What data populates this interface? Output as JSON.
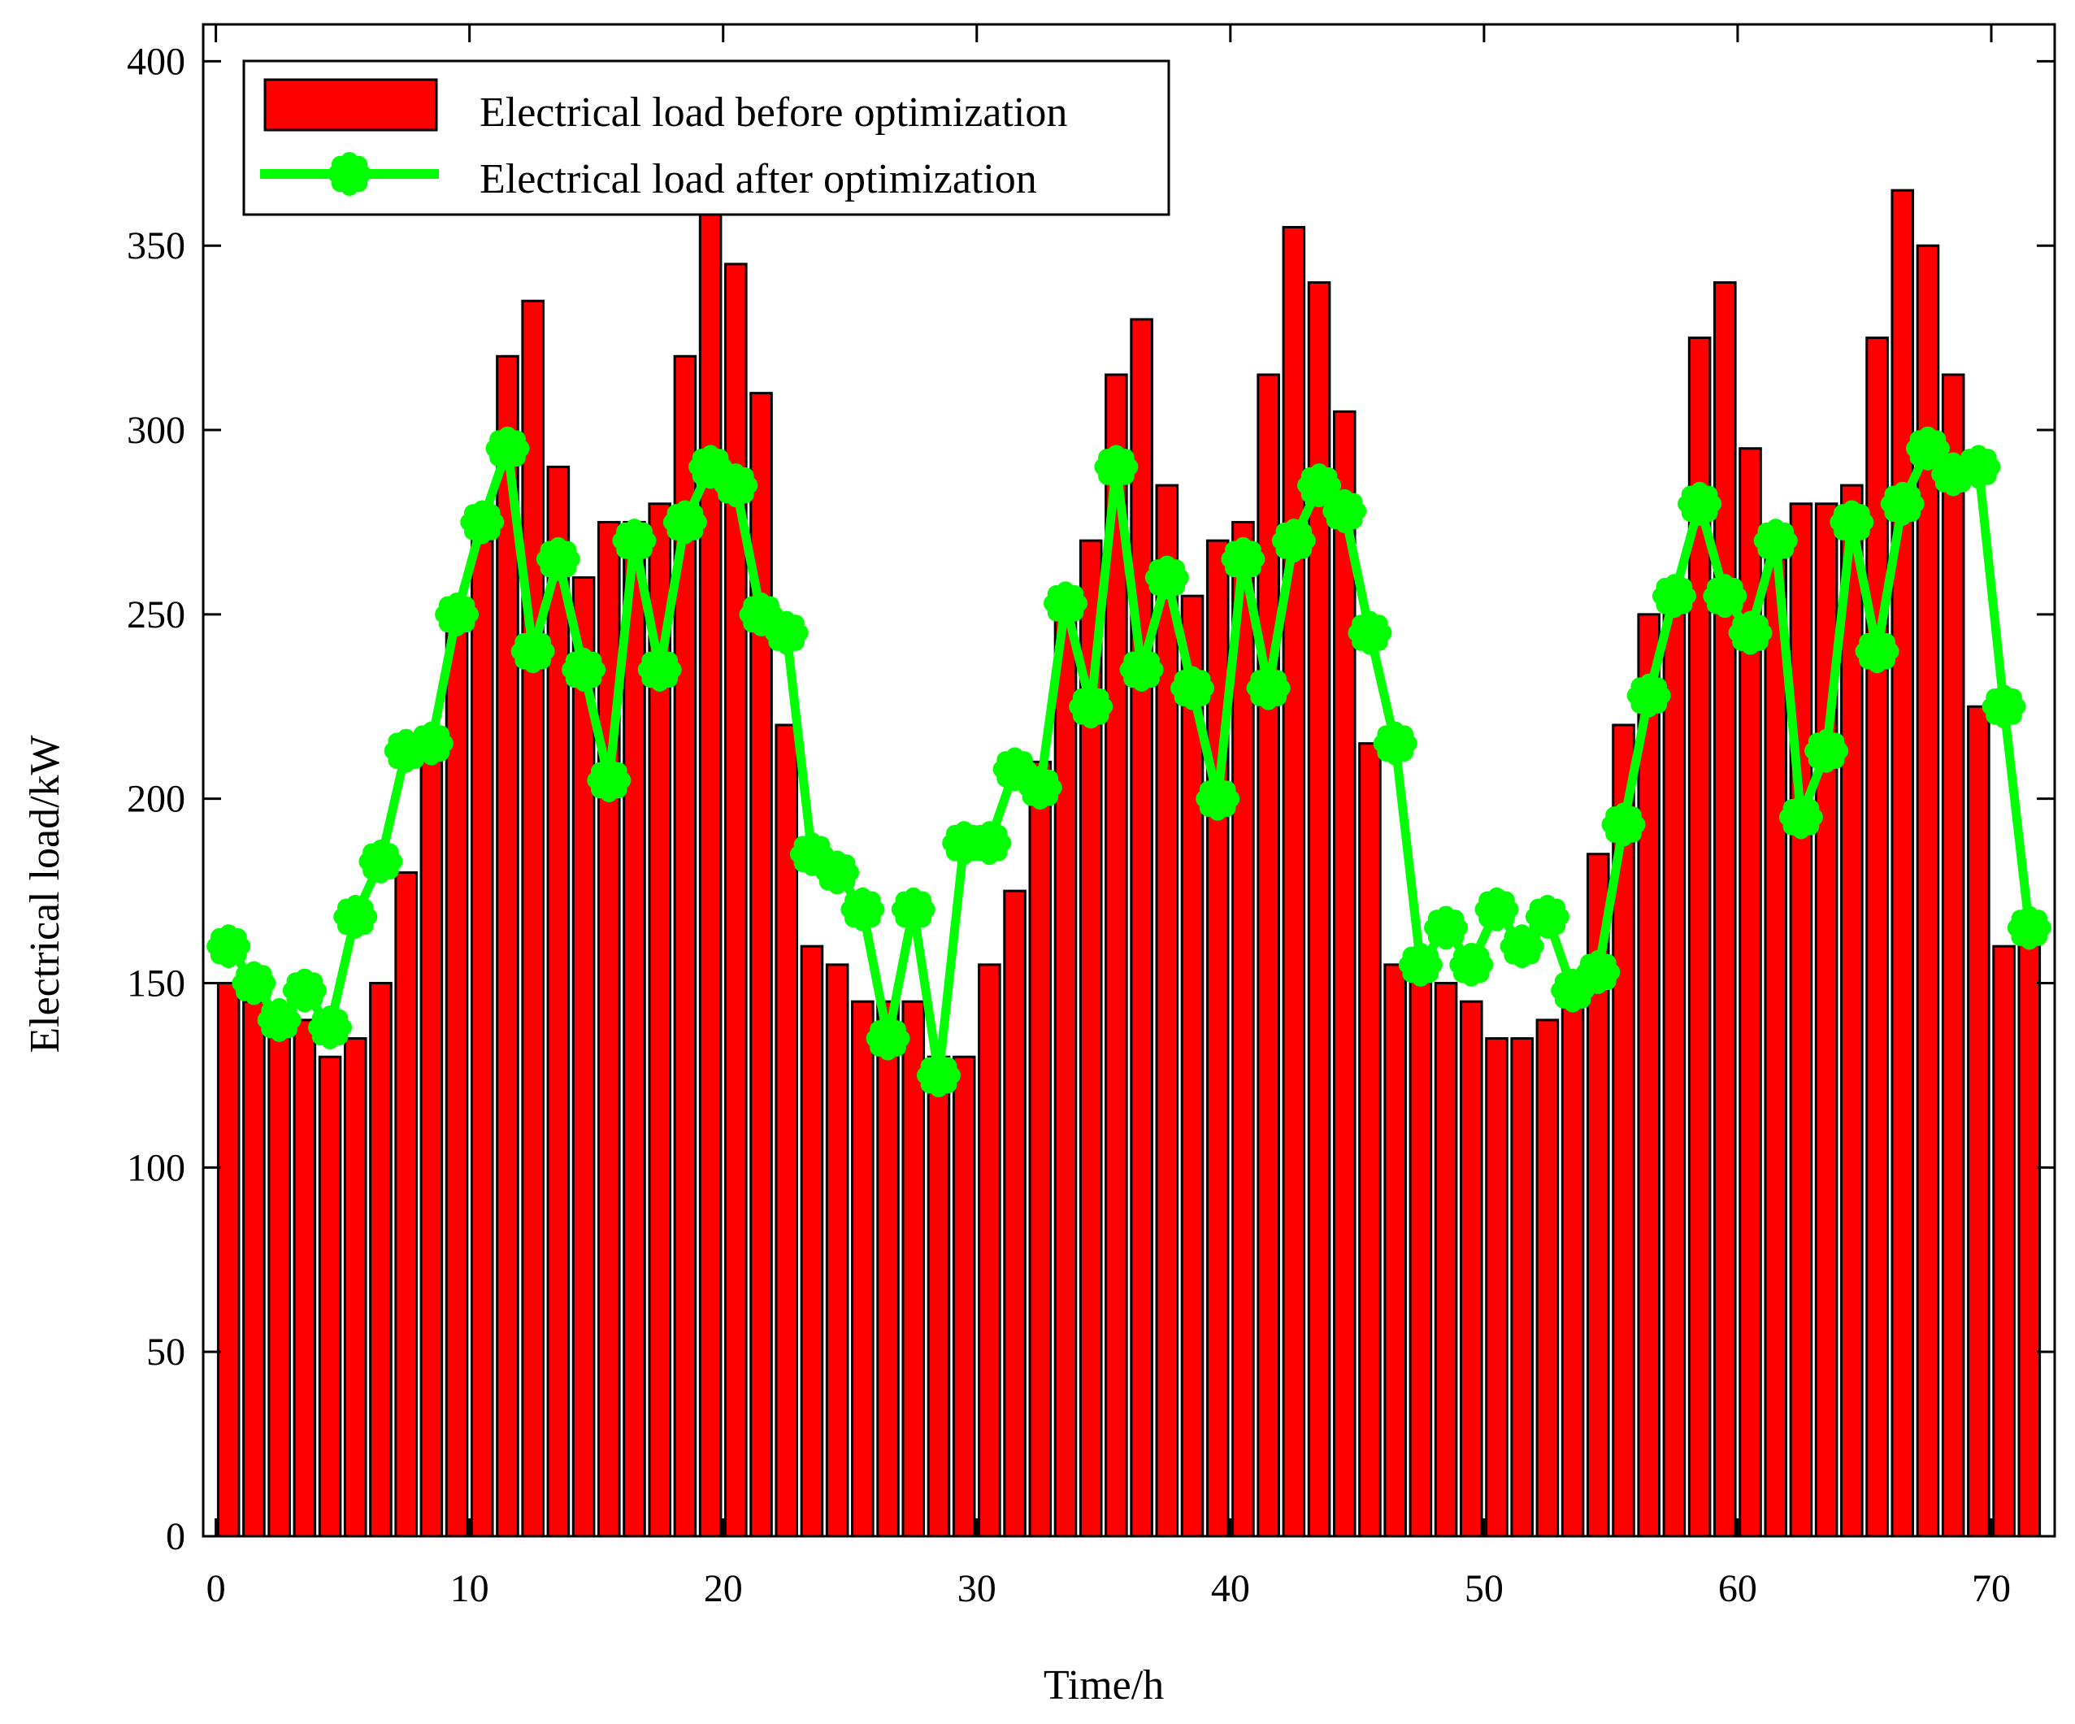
{
  "chart_data": {
    "type": "bar",
    "title": "",
    "xlabel": "Time/h",
    "ylabel": "Electrical load/kW",
    "xlim": [
      -0.5,
      72.5
    ],
    "ylim": [
      0,
      410
    ],
    "x_ticks": [
      0,
      10,
      20,
      30,
      40,
      50,
      60,
      70
    ],
    "y_ticks": [
      0,
      50,
      100,
      150,
      200,
      250,
      300,
      350,
      400
    ],
    "grid": false,
    "legend_position": "top-left",
    "x": [
      1,
      2,
      3,
      4,
      5,
      6,
      7,
      8,
      9,
      10,
      11,
      12,
      13,
      14,
      15,
      16,
      17,
      18,
      19,
      20,
      21,
      22,
      23,
      24,
      25,
      26,
      27,
      28,
      29,
      30,
      31,
      32,
      33,
      34,
      35,
      36,
      37,
      38,
      39,
      40,
      41,
      42,
      43,
      44,
      45,
      46,
      47,
      48,
      49,
      50,
      51,
      52,
      53,
      54,
      55,
      56,
      57,
      58,
      59,
      60,
      61,
      62,
      63,
      64,
      65,
      66,
      67,
      68,
      69,
      70,
      71,
      72
    ],
    "series": [
      {
        "name": "Electrical load before optimization",
        "kind": "bar",
        "color": "#ff0000",
        "values": [
          150,
          145,
          140,
          140,
          130,
          135,
          150,
          180,
          215,
          250,
          270,
          320,
          335,
          290,
          260,
          275,
          275,
          280,
          320,
          360,
          345,
          310,
          220,
          160,
          155,
          145,
          145,
          145,
          130,
          130,
          155,
          175,
          210,
          250,
          270,
          315,
          330,
          285,
          255,
          270,
          275,
          315,
          355,
          340,
          305,
          215,
          155,
          155,
          150,
          145,
          135,
          135,
          140,
          145,
          185,
          220,
          250,
          255,
          325,
          340,
          295,
          265,
          280,
          280,
          285,
          325,
          365,
          350,
          315,
          225,
          160,
          165
        ]
      },
      {
        "name": "Electrical load after optimization",
        "kind": "line",
        "color": "#00ff00",
        "values": [
          160,
          150,
          140,
          148,
          138,
          168,
          183,
          213,
          215,
          250,
          275,
          295,
          240,
          265,
          235,
          205,
          270,
          235,
          275,
          290,
          285,
          250,
          245,
          185,
          180,
          170,
          135,
          170,
          125,
          188,
          188,
          208,
          203,
          253,
          225,
          290,
          235,
          260,
          230,
          200,
          265,
          230,
          270,
          285,
          278,
          245,
          215,
          155,
          165,
          155,
          170,
          160,
          168,
          148,
          153,
          193,
          228,
          255,
          280,
          255,
          245,
          270,
          195,
          213,
          275,
          240,
          280,
          295,
          288,
          290,
          225,
          165
        ]
      }
    ]
  }
}
